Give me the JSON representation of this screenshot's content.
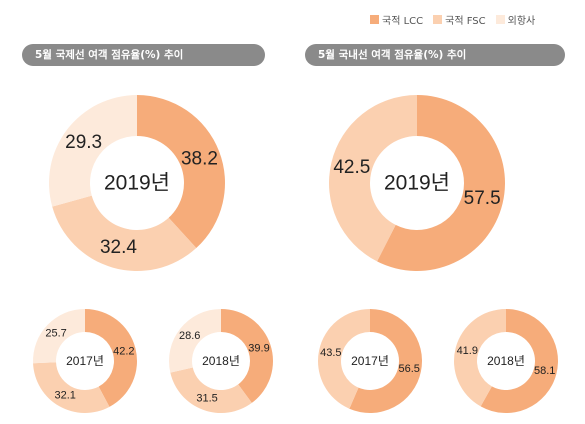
{
  "legend": {
    "items": [
      {
        "label": "국적 LCC",
        "color": "#f6ac7a"
      },
      {
        "label": "국적 FSC",
        "color": "#fbd0b0"
      },
      {
        "label": "외항사",
        "color": "#fdeadb"
      }
    ]
  },
  "headers": {
    "international": "5월 국제선 여객 점유율(%) 추이",
    "domestic": "5월 국내선 여객 점유율(%) 추이"
  },
  "chart_data": [
    {
      "type": "pie",
      "subtype": "donut",
      "panel": "international",
      "center_label": "2019년",
      "categories": [
        "국적 LCC",
        "국적 FSC",
        "외항사"
      ],
      "values": [
        38.2,
        32.4,
        29.3
      ]
    },
    {
      "type": "pie",
      "subtype": "donut",
      "panel": "domestic",
      "center_label": "2019년",
      "categories": [
        "국적 LCC",
        "국적 FSC"
      ],
      "values": [
        57.5,
        42.5
      ]
    },
    {
      "type": "pie",
      "subtype": "donut",
      "panel": "international",
      "center_label": "2017년",
      "categories": [
        "국적 LCC",
        "국적 FSC",
        "외항사"
      ],
      "values": [
        42.2,
        32.1,
        25.7
      ]
    },
    {
      "type": "pie",
      "subtype": "donut",
      "panel": "international",
      "center_label": "2018년",
      "categories": [
        "국적 LCC",
        "국적 FSC",
        "외항사"
      ],
      "values": [
        39.9,
        31.5,
        28.6
      ]
    },
    {
      "type": "pie",
      "subtype": "donut",
      "panel": "domestic",
      "center_label": "2017년",
      "categories": [
        "국적 LCC",
        "국적 FSC"
      ],
      "values": [
        56.5,
        43.5
      ]
    },
    {
      "type": "pie",
      "subtype": "donut",
      "panel": "domestic",
      "center_label": "2018년",
      "categories": [
        "국적 LCC",
        "국적 FSC"
      ],
      "values": [
        58.1,
        41.9
      ]
    }
  ]
}
